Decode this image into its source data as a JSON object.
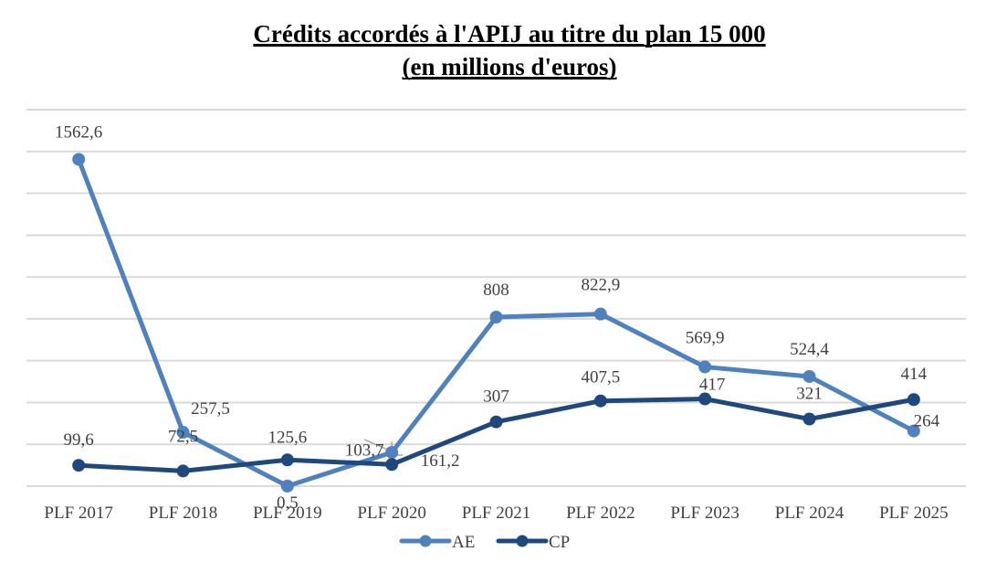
{
  "chart_data": {
    "type": "line",
    "title": "Crédits accordés à l'APIJ au titre du plan 15 000",
    "subtitle": "(en millions d'euros)",
    "xlabel": "",
    "ylabel": "",
    "categories": [
      "PLF 2017",
      "PLF 2018",
      "PLF 2019",
      "PLF 2020",
      "PLF 2021",
      "PLF 2022",
      "PLF 2023",
      "PLF 2024",
      "PLF 2025"
    ],
    "ylim": [
      0,
      1800
    ],
    "ytick_step": 200,
    "y_axis_labels_visible": false,
    "grid": true,
    "legend_position": "bottom",
    "series": [
      {
        "name": "AE",
        "color": "#4F81BD",
        "values": [
          1562.6,
          257.5,
          0.5,
          161.2,
          808,
          822.9,
          569.9,
          524.4,
          264
        ],
        "labels": [
          "1562,6",
          "257,5",
          "0,5",
          "161,2",
          "808",
          "822,9",
          "569,9",
          "524,4",
          "264"
        ]
      },
      {
        "name": "CP",
        "color": "#1F497D",
        "values": [
          99.6,
          72.5,
          125.6,
          103.7,
          307,
          407.5,
          417,
          321,
          414
        ],
        "labels": [
          "99,6",
          "72,5",
          "125,6",
          "103,7",
          "307",
          "407,5",
          "417",
          "321",
          "414"
        ]
      }
    ]
  }
}
